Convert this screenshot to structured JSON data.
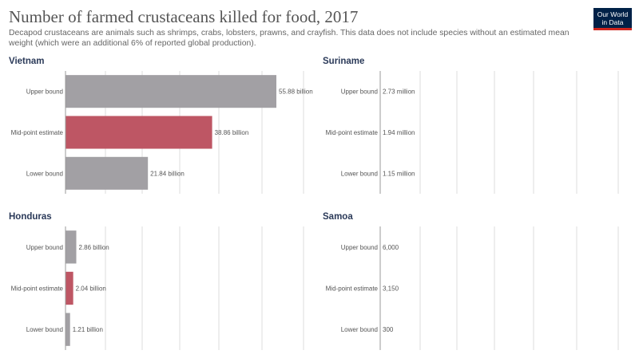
{
  "header": {
    "title": "Number of farmed crustaceans killed for food, 2017",
    "subtitle": "Decapod crustaceans are animals such as shrimps, crabs, lobsters, prawns, and crayfish. This data does not include species without an estimated mean weight (which were an additional 6% of reported global production).",
    "logo_line1": "Our World",
    "logo_line2": "in Data"
  },
  "colors": {
    "bound_bar": "#a2a0a4",
    "midpoint_bar": "#be5664",
    "panel_title": "#2b3a59",
    "grid": "#dddddd",
    "label": "#555555",
    "value": "#555555"
  },
  "chart_data": [
    {
      "type": "bar",
      "title": "Vietnam",
      "categories": [
        "Upper bound",
        "Mid-point estimate",
        "Lower bound"
      ],
      "values": [
        55880000000,
        38860000000,
        21840000000
      ],
      "value_labels": [
        "55.88 billion",
        "38.86 billion",
        "21.84 billion"
      ],
      "xlim": [
        0,
        55880000000
      ]
    },
    {
      "type": "bar",
      "title": "Suriname",
      "categories": [
        "Upper bound",
        "Mid-point estimate",
        "Lower bound"
      ],
      "values": [
        2730000,
        1940000,
        1150000
      ],
      "value_labels": [
        "2.73 million",
        "1.94 million",
        "1.15 million"
      ],
      "xlim": [
        0,
        55880000000
      ]
    },
    {
      "type": "bar",
      "title": "Honduras",
      "categories": [
        "Upper bound",
        "Mid-point estimate",
        "Lower bound"
      ],
      "values": [
        2860000000,
        2040000000,
        1210000000
      ],
      "value_labels": [
        "2.86 billion",
        "2.04 billion",
        "1.21 billion"
      ],
      "xlim": [
        0,
        55880000000
      ]
    },
    {
      "type": "bar",
      "title": "Samoa",
      "categories": [
        "Upper bound",
        "Mid-point estimate",
        "Lower bound"
      ],
      "values": [
        6000,
        3150,
        300
      ],
      "value_labels": [
        "6,000",
        "3,150",
        "300"
      ],
      "xlim": [
        0,
        55880000000
      ]
    }
  ]
}
